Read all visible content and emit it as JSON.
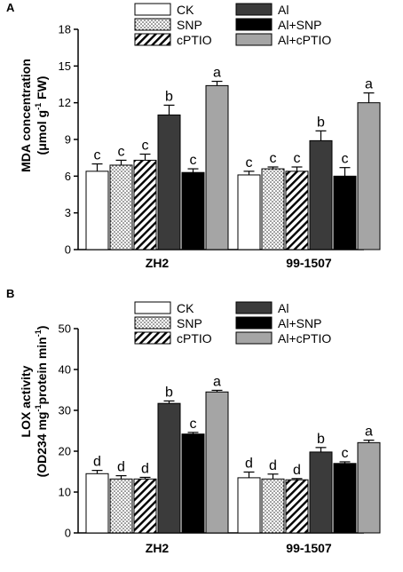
{
  "chart_data": [
    {
      "type": "bar",
      "panel": "A",
      "categories": [
        "ZH2",
        "99-1507"
      ],
      "series": [
        {
          "name": "CK",
          "values": [
            6.4,
            6.1
          ],
          "errors": [
            0.6,
            0.3
          ],
          "labels": [
            "c",
            "c"
          ],
          "pattern": "white"
        },
        {
          "name": "SNP",
          "values": [
            6.9,
            6.6
          ],
          "errors": [
            0.4,
            0.15
          ],
          "labels": [
            "c",
            "c"
          ],
          "pattern": "dots"
        },
        {
          "name": "cPTIO",
          "values": [
            7.3,
            6.4
          ],
          "errors": [
            0.5,
            0.35
          ],
          "labels": [
            "c",
            "c"
          ],
          "pattern": "hatch"
        },
        {
          "name": "Al",
          "values": [
            11.0,
            8.9
          ],
          "errors": [
            0.8,
            0.8
          ],
          "labels": [
            "b",
            "b"
          ],
          "pattern": "darkgray"
        },
        {
          "name": "Al+SNP",
          "values": [
            6.3,
            6.0
          ],
          "errors": [
            0.3,
            0.7
          ],
          "labels": [
            "c",
            "c"
          ],
          "pattern": "black"
        },
        {
          "name": "Al+cPTIO",
          "values": [
            13.4,
            12.0
          ],
          "errors": [
            0.35,
            0.8
          ],
          "labels": [
            "a",
            "a"
          ],
          "pattern": "lightgray"
        }
      ],
      "ylabel": "MDA concentration",
      "ylabel_unit_pre": "(μmol g",
      "ylabel_unit_sup": "-1",
      "ylabel_unit_post": " FW)",
      "ylim": [
        0,
        18
      ],
      "yticks": [
        "0",
        "3",
        "6",
        "9",
        "12",
        "15",
        "18"
      ],
      "legend": "top"
    },
    {
      "type": "bar",
      "panel": "B",
      "categories": [
        "ZH2",
        "99-1507"
      ],
      "series": [
        {
          "name": "CK",
          "values": [
            14.5,
            13.5
          ],
          "errors": [
            0.8,
            1.4
          ],
          "labels": [
            "d",
            "d"
          ],
          "pattern": "white"
        },
        {
          "name": "SNP",
          "values": [
            13.2,
            13.2
          ],
          "errors": [
            0.8,
            1.2
          ],
          "labels": [
            "d",
            "d"
          ],
          "pattern": "dots"
        },
        {
          "name": "cPTIO",
          "values": [
            13.2,
            13.0
          ],
          "errors": [
            0.4,
            0.3
          ],
          "labels": [
            "d",
            "d"
          ],
          "pattern": "hatch"
        },
        {
          "name": "Al",
          "values": [
            31.7,
            19.8
          ],
          "errors": [
            0.6,
            1.1
          ],
          "labels": [
            "b",
            "b"
          ],
          "pattern": "darkgray"
        },
        {
          "name": "Al+SNP",
          "values": [
            24.2,
            17.0
          ],
          "errors": [
            0.4,
            0.4
          ],
          "labels": [
            "c",
            "c"
          ],
          "pattern": "black"
        },
        {
          "name": "Al+cPTIO",
          "values": [
            34.5,
            22.1
          ],
          "errors": [
            0.4,
            0.6
          ],
          "labels": [
            "a",
            "a"
          ],
          "pattern": "lightgray"
        }
      ],
      "ylabel": "LOX activity",
      "ylabel_unit_pre": "(OD234 mg",
      "ylabel_unit_sup": "-1",
      "ylabel_unit_mid": "protein min",
      "ylabel_unit_sup2": "-1",
      "ylabel_unit_post": ")",
      "ylim": [
        0,
        50
      ],
      "yticks": [
        "0",
        "10",
        "20",
        "30",
        "40",
        "50"
      ],
      "legend": "top"
    }
  ]
}
